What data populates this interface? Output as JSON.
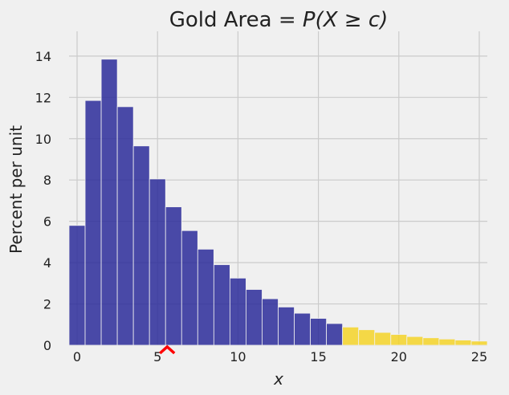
{
  "chart_data": {
    "type": "bar",
    "title_prefix": "Gold Area = ",
    "title_math": "P(X ≥ c)",
    "xlabel": "x",
    "ylabel": "Percent per unit",
    "xlim": [
      -0.5,
      25.5
    ],
    "ylim": [
      0,
      15.2
    ],
    "xticks": [
      0,
      5,
      10,
      15,
      20,
      25
    ],
    "yticks": [
      0,
      2,
      4,
      6,
      8,
      10,
      12,
      14
    ],
    "grid": true,
    "bin_width": 1,
    "threshold_c": 17,
    "marker_x": 5.6,
    "colors": {
      "below": "#2b2b9a",
      "above": "#f5d21c",
      "marker": "#ff0000",
      "background": "#f0f0f0"
    },
    "x": [
      0,
      1,
      2,
      3,
      4,
      5,
      6,
      7,
      8,
      9,
      10,
      11,
      12,
      13,
      14,
      15,
      16,
      17,
      18,
      19,
      20,
      21,
      22,
      23,
      24,
      25
    ],
    "values": [
      5.8,
      11.85,
      13.85,
      11.55,
      9.65,
      8.05,
      6.7,
      5.55,
      4.65,
      3.9,
      3.25,
      2.7,
      2.25,
      1.85,
      1.55,
      1.3,
      1.05,
      0.88,
      0.75,
      0.62,
      0.52,
      0.42,
      0.36,
      0.3,
      0.25,
      0.2
    ]
  }
}
